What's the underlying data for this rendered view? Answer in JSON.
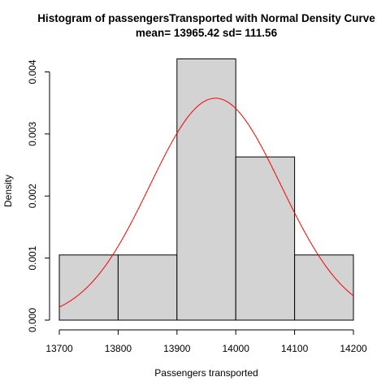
{
  "chart_data": {
    "type": "bar",
    "title": "Histogram of passengersTransported with Normal Density Curve",
    "subtitle": "mean= 13965.42 sd= 111.56",
    "xlabel": "Passengers transported",
    "ylabel": "Density",
    "xlim": [
      13700,
      14200
    ],
    "ylim": [
      0,
      0.0042
    ],
    "x_ticks": [
      "13700",
      "13800",
      "13900",
      "14000",
      "14100",
      "14200"
    ],
    "y_ticks": [
      "0.000",
      "0.001",
      "0.002",
      "0.003",
      "0.004"
    ],
    "bins": [
      {
        "start": 13700,
        "end": 13800,
        "density": 0.00105
      },
      {
        "start": 13800,
        "end": 13900,
        "density": 0.00105
      },
      {
        "start": 13900,
        "end": 14000,
        "density": 0.00421
      },
      {
        "start": 14000,
        "end": 14100,
        "density": 0.00263
      },
      {
        "start": 14100,
        "end": 14200,
        "density": 0.00105
      }
    ],
    "curve": {
      "type": "normal-density",
      "mean": 13965.42,
      "sd": 111.56
    },
    "colors": {
      "bar_fill": "#d3d3d3",
      "bar_stroke": "#000000",
      "curve": "#ff0000",
      "axis": "#000000"
    }
  }
}
